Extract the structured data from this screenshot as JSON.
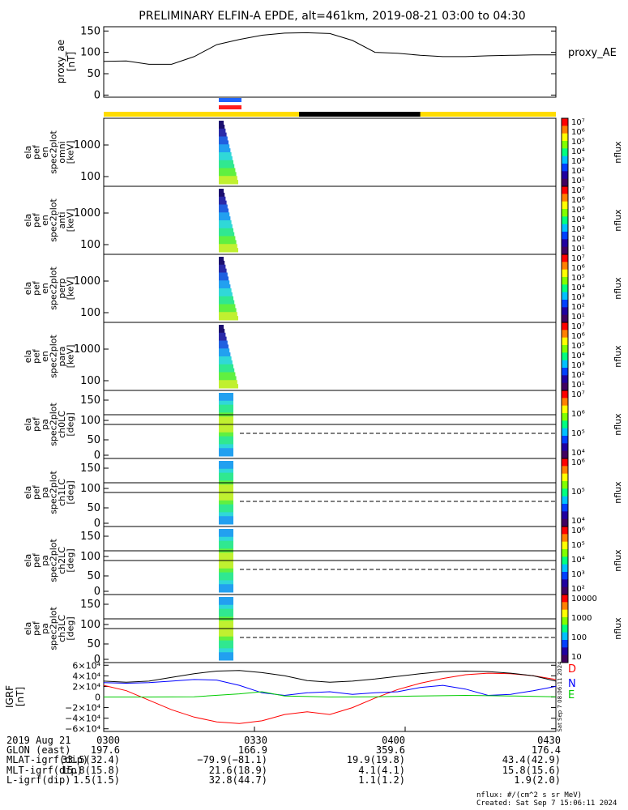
{
  "title": "PRELIMINARY ELFIN-A EPDE, alt=461km, 2019-08-21 03:00 to 04:30",
  "colors": {
    "orbit_bar_day": "#ffdc00",
    "orbit_bar_night": "#000000",
    "sci_zone_blue": "#1e64ff",
    "sci_zone_red": "#ff1e1e",
    "line_D": "#ff0000",
    "line_N": "#0000ff",
    "line_E": "#00cc00",
    "line_total": "#000000"
  },
  "chart_data": [
    {
      "type": "line",
      "name": "proxy_ae",
      "ylabel_lines": [
        "proxy_ae",
        "[nT]"
      ],
      "legend": "proxy_AE",
      "ylim": [
        -5,
        160
      ],
      "yticks": [
        0,
        50,
        100,
        150
      ],
      "x": [
        0,
        0.05,
        0.1,
        0.15,
        0.2,
        0.25,
        0.3,
        0.35,
        0.4,
        0.45,
        0.5,
        0.55,
        0.6,
        0.65,
        0.7,
        0.75,
        0.8,
        0.85,
        0.9,
        0.95,
        1
      ],
      "values": [
        79,
        80,
        72,
        72,
        90,
        118,
        130,
        140,
        145,
        146,
        144,
        128,
        100,
        98,
        93,
        90,
        90,
        92,
        93,
        94,
        94
      ]
    },
    {
      "type": "heatmap",
      "name": "omni",
      "ylabel_lines": [
        "ela",
        "pef",
        "en",
        "spec2plot",
        "omni",
        "[keV]"
      ],
      "yticks": [
        "100",
        "1000"
      ],
      "cbar": [
        "10⁷",
        "10⁶",
        "10⁵",
        "10⁴",
        "10³",
        "10²",
        "10¹"
      ],
      "cbar_label": "nflux"
    },
    {
      "type": "heatmap",
      "name": "anti",
      "ylabel_lines": [
        "ela",
        "pef",
        "en",
        "spec2plot",
        "anti",
        "[keV]"
      ],
      "yticks": [
        "100",
        "1000"
      ],
      "cbar": [
        "10⁷",
        "10⁶",
        "10⁵",
        "10⁴",
        "10³",
        "10²",
        "10¹"
      ],
      "cbar_label": "nflux"
    },
    {
      "type": "heatmap",
      "name": "perp",
      "ylabel_lines": [
        "ela",
        "pef",
        "en",
        "spec2plot",
        "perp",
        "[keV]"
      ],
      "yticks": [
        "100",
        "1000"
      ],
      "cbar": [
        "10⁷",
        "10⁶",
        "10⁵",
        "10⁴",
        "10³",
        "10²",
        "10¹"
      ],
      "cbar_label": "nflux"
    },
    {
      "type": "heatmap",
      "name": "para",
      "ylabel_lines": [
        "ela",
        "pef",
        "en",
        "spec2plot",
        "para",
        "[keV]"
      ],
      "yticks": [
        "100",
        "1000"
      ],
      "cbar": [
        "10⁷",
        "10⁶",
        "10⁵",
        "10⁴",
        "10³",
        "10²",
        "10¹"
      ],
      "cbar_label": "nflux"
    },
    {
      "type": "heatmap",
      "name": "ch0LC",
      "ylabel_lines": [
        "ela",
        "pef",
        "pa",
        "spec2plot",
        "ch0LC",
        "[deg]"
      ],
      "yticks": [
        "0",
        "50",
        "100",
        "150"
      ],
      "cbar": [
        "10⁷",
        "10⁶",
        "10⁵",
        "10⁴"
      ],
      "cbar_label": "nflux"
    },
    {
      "type": "heatmap",
      "name": "ch1LC",
      "ylabel_lines": [
        "ela",
        "pef",
        "pa",
        "spec2plot",
        "ch1LC",
        "[deg]"
      ],
      "yticks": [
        "0",
        "50",
        "100",
        "150"
      ],
      "cbar": [
        "10⁶",
        "10⁵",
        "10⁴"
      ],
      "cbar_label": "nflux"
    },
    {
      "type": "heatmap",
      "name": "ch2LC",
      "ylabel_lines": [
        "ela",
        "pef",
        "pa",
        "spec2plot",
        "ch2LC",
        "[deg]"
      ],
      "yticks": [
        "0",
        "50",
        "100",
        "150"
      ],
      "cbar": [
        "10⁶",
        "10⁵",
        "10⁴",
        "10³",
        "10²"
      ],
      "cbar_label": "nflux"
    },
    {
      "type": "heatmap",
      "name": "ch3LC",
      "ylabel_lines": [
        "ela",
        "pef",
        "pa",
        "spec2plot",
        "ch3LC",
        "[deg]"
      ],
      "yticks": [
        "0",
        "50",
        "100",
        "150"
      ],
      "cbar": [
        "10000",
        "1000",
        "100",
        "10"
      ],
      "cbar_label": "nflux"
    },
    {
      "type": "line",
      "name": "IGRF",
      "ylabel_lines": [
        "IGRF",
        "[nT]"
      ],
      "ylim": [
        -65000,
        65000
      ],
      "yticks": [
        "6×10⁴",
        "4×10⁴",
        "2×10⁴",
        "0",
        "−2×10⁴",
        "−4×10⁴",
        "−6×10⁴"
      ],
      "ytick_values": [
        60000,
        40000,
        20000,
        0,
        -20000,
        -40000,
        -60000
      ],
      "series": [
        {
          "name": "D",
          "x": [
            0,
            0.05,
            0.1,
            0.15,
            0.2,
            0.25,
            0.3,
            0.35,
            0.4,
            0.45,
            0.5,
            0.55,
            0.6,
            0.65,
            0.7,
            0.75,
            0.8,
            0.85,
            0.9,
            0.95,
            1
          ],
          "values": [
            22000,
            12000,
            -6000,
            -24000,
            -38000,
            -47000,
            -50000,
            -45000,
            -33000,
            -28000,
            -33000,
            -20000,
            -2000,
            14000,
            26000,
            35000,
            42000,
            45000,
            44000,
            40000,
            33000
          ]
        },
        {
          "name": "N",
          "x": [
            0,
            0.05,
            0.1,
            0.15,
            0.2,
            0.25,
            0.3,
            0.35,
            0.4,
            0.45,
            0.5,
            0.55,
            0.6,
            0.65,
            0.7,
            0.75,
            0.8,
            0.85,
            0.9,
            0.95,
            1
          ],
          "values": [
            27000,
            26000,
            27000,
            30000,
            33000,
            32000,
            22000,
            8000,
            3000,
            8000,
            10000,
            5000,
            8000,
            10000,
            18000,
            22000,
            15000,
            3000,
            5000,
            12000,
            20000
          ]
        },
        {
          "name": "E",
          "x": [
            0,
            0.1,
            0.2,
            0.3,
            0.35,
            0.4,
            0.5,
            0.6,
            0.7,
            0.8,
            0.9,
            1
          ],
          "values": [
            0,
            0,
            500,
            6000,
            10000,
            2000,
            0,
            500,
            2000,
            3000,
            2000,
            500
          ]
        },
        {
          "name": "total",
          "x": [
            0,
            0.05,
            0.1,
            0.15,
            0.2,
            0.25,
            0.3,
            0.35,
            0.4,
            0.45,
            0.5,
            0.55,
            0.6,
            0.65,
            0.7,
            0.75,
            0.8,
            0.85,
            0.9,
            0.95,
            1
          ],
          "values": [
            30000,
            28000,
            30000,
            37000,
            44000,
            49000,
            50000,
            46000,
            40000,
            31000,
            28000,
            30000,
            34000,
            39000,
            44000,
            48000,
            49000,
            48000,
            45000,
            40000,
            30000
          ]
        }
      ]
    }
  ],
  "xticks": [
    "0300",
    "0330",
    "0400",
    "0430"
  ],
  "footer": {
    "rows": [
      {
        "label": "2019 Aug 21",
        "vals": [
          "0300",
          "0330",
          "0400",
          "0430"
        ]
      },
      {
        "label": "GLON (east)",
        "vals": [
          "197.6",
          "166.9",
          "359.6",
          "176.4"
        ]
      },
      {
        "label": "MLAT-igrf(dip)",
        "vals": [
          "33.5(32.4)",
          "−79.9(−81.1)",
          "19.9(19.8)",
          "43.4(42.9)"
        ]
      },
      {
        "label": "MLT-igrf(dip)",
        "vals": [
          "15.8(15.8)",
          "21.6(18.9)",
          "4.1(4.1)",
          "15.8(15.6)"
        ]
      },
      {
        "label": "L-igrf(dip)",
        "vals": [
          "1.5(1.5)",
          "32.8(44.7)",
          "1.1(1.2)",
          "1.9(2.0)"
        ]
      }
    ],
    "units": "nflux: #/(cm^2 s sr MeV)",
    "created": "Created: Sat Sep  7 15:06:11 2024",
    "side_stamp": "Sat Sep  7 08:06:11 2024"
  }
}
